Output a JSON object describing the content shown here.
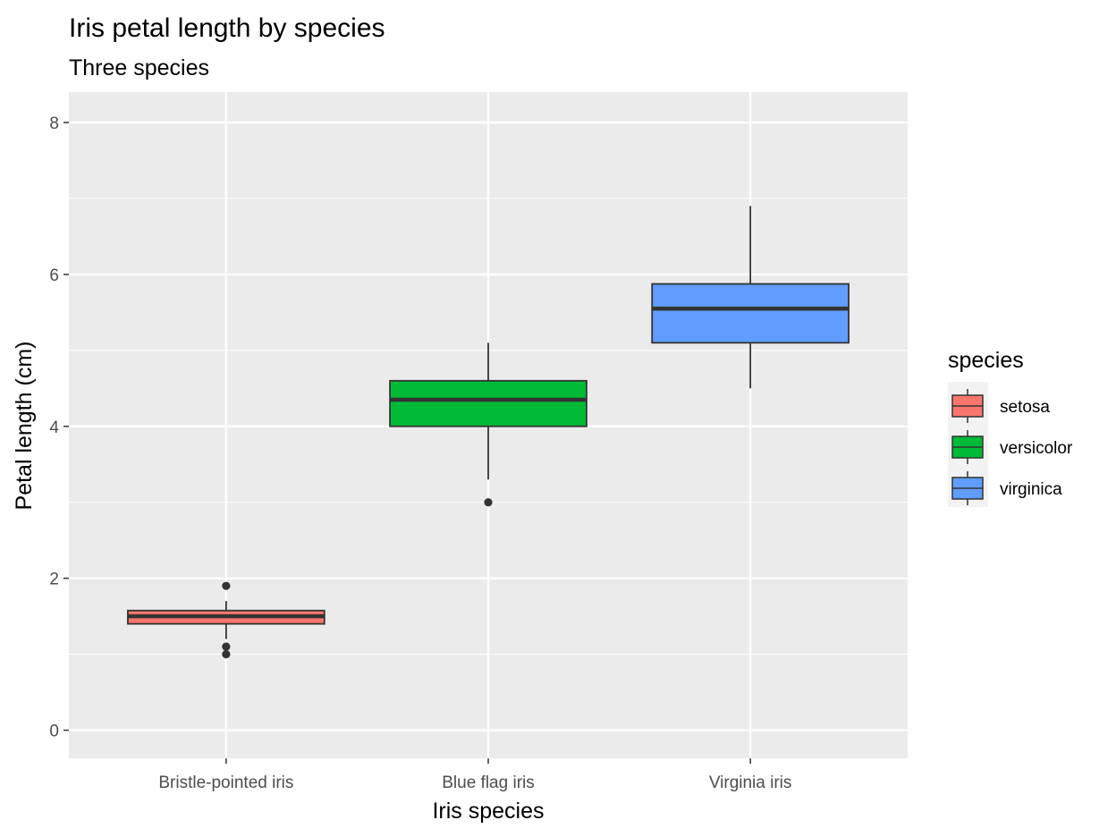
{
  "chart_data": {
    "type": "boxplot",
    "title": "Iris petal length by species",
    "subtitle": "Three species",
    "xlabel": "Iris species",
    "ylabel": "Petal length (cm)",
    "ylim": [
      -0.37,
      8.4
    ],
    "yticks": [
      0,
      2,
      4,
      6,
      8
    ],
    "categories": [
      "Bristle-pointed iris",
      "Blue flag iris",
      "Virginia iris"
    ],
    "grid": true,
    "legend": {
      "title": "species",
      "position": "right",
      "items": [
        "setosa",
        "versicolor",
        "virginica"
      ]
    },
    "colors": [
      "#f8766d",
      "#00ba38",
      "#619cff"
    ],
    "boxes": [
      {
        "species": "setosa",
        "lower_whisker": 1.2,
        "q1": 1.4,
        "median": 1.5,
        "q3": 1.575,
        "upper_whisker": 1.7,
        "outliers": [
          1.9,
          1.1,
          1.0
        ]
      },
      {
        "species": "versicolor",
        "lower_whisker": 3.3,
        "q1": 4.0,
        "median": 4.35,
        "q3": 4.6,
        "upper_whisker": 5.1,
        "outliers": [
          3.0
        ]
      },
      {
        "species": "virginica",
        "lower_whisker": 4.5,
        "q1": 5.1,
        "median": 5.55,
        "q3": 5.875,
        "upper_whisker": 6.9,
        "outliers": []
      }
    ]
  }
}
